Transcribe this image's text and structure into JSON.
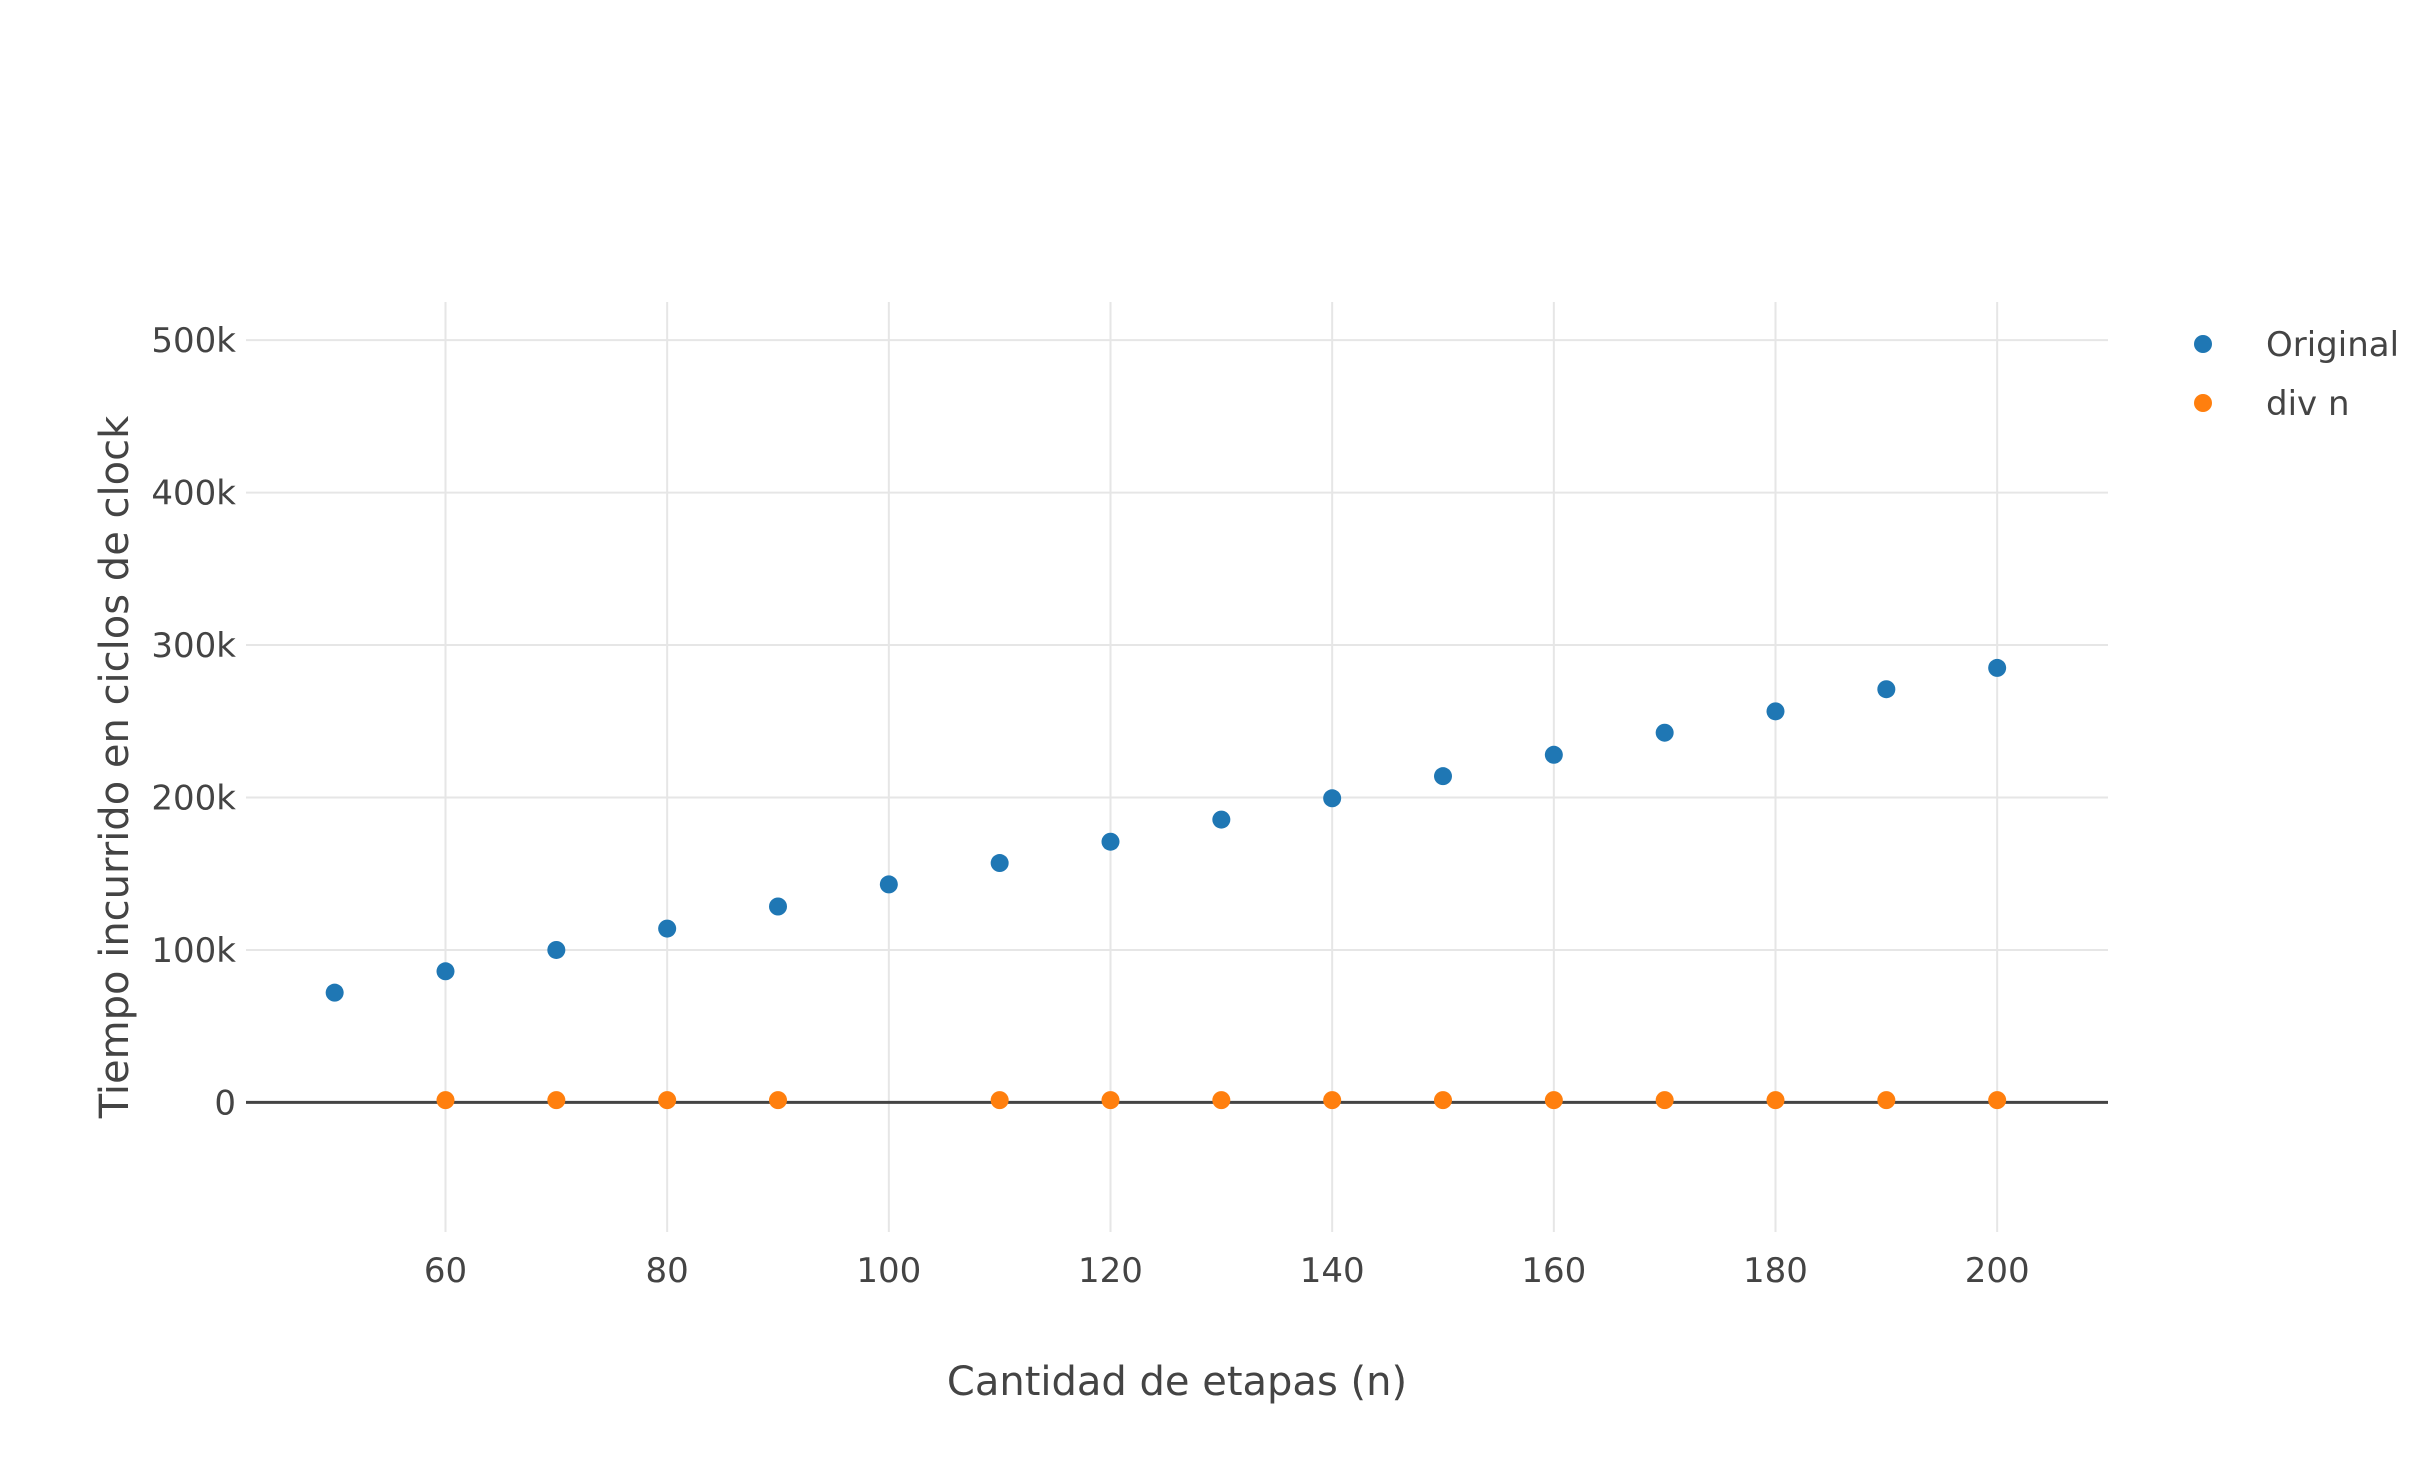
{
  "chart_data": {
    "type": "scatter",
    "title": "",
    "xlabel": "Cantidad de etapas (n)",
    "ylabel": "Tiempo incurrido en ciclos de clock",
    "xlim": [
      42,
      210
    ],
    "ylim": [
      -85000,
      525000
    ],
    "x_ticks": [
      60,
      80,
      100,
      120,
      140,
      160,
      180,
      200
    ],
    "x_tick_labels": [
      "60",
      "80",
      "100",
      "120",
      "140",
      "160",
      "180",
      "200"
    ],
    "y_ticks": [
      0,
      100000,
      200000,
      300000,
      400000,
      500000
    ],
    "y_tick_labels": [
      "0",
      "100k",
      "200k",
      "300k",
      "400k",
      "500k"
    ],
    "grid": true,
    "legend_position": "top-right",
    "series": [
      {
        "name": "Original",
        "color": "#1f77b4",
        "x": [
          50,
          60,
          70,
          80,
          90,
          100,
          110,
          120,
          130,
          140,
          150,
          160,
          170,
          180,
          190,
          200
        ],
        "y": [
          72000,
          86000,
          100000,
          114000,
          128500,
          143000,
          157000,
          171000,
          185500,
          199500,
          214000,
          228000,
          242500,
          256500,
          271000,
          285000
        ]
      },
      {
        "name": "div n",
        "color": "#ff7f0e",
        "x": [
          60,
          70,
          80,
          90,
          110,
          120,
          130,
          140,
          150,
          160,
          170,
          180,
          190,
          200
        ],
        "y": [
          1500,
          1500,
          1500,
          1500,
          1500,
          1500,
          1500,
          1500,
          1500,
          1500,
          1500,
          1500,
          1500,
          1500
        ]
      }
    ]
  }
}
